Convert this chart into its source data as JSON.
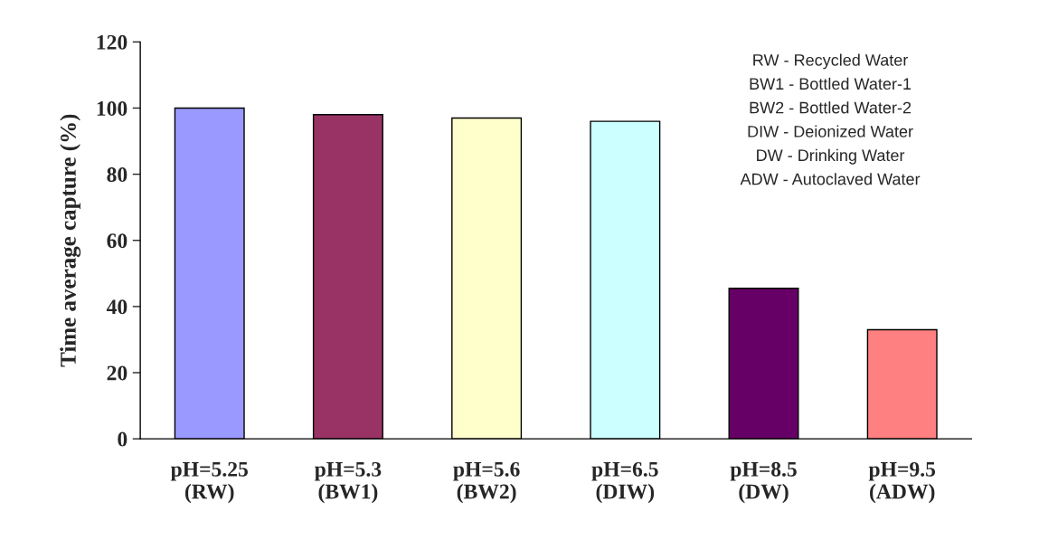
{
  "chart_data": {
    "type": "bar",
    "ylabel": "Time average capture (%)",
    "categories": [
      "pH=5.25\n(RW)",
      "pH=5.3\n(BW1)",
      "pH=5.6\n(BW2)",
      "pH=6.5\n(DIW)",
      "pH=8.5\n(DW)",
      "pH=9.5\n(ADW)"
    ],
    "values": [
      100,
      98,
      97,
      96,
      45.5,
      33
    ],
    "colors": [
      "#9999ff",
      "#993366",
      "#ffffcc",
      "#ccffff",
      "#660066",
      "#ff8080"
    ],
    "ylim": [
      0,
      120
    ],
    "yticks": [
      0,
      20,
      40,
      60,
      80,
      100,
      120
    ],
    "grid": false,
    "annotations": [
      "RW - Recycled Water",
      "BW1 - Bottled Water-1",
      "BW2 - Bottled Water-2",
      "DIW - Deionized Water",
      "DW - Drinking Water",
      "ADW - Autoclaved Water"
    ]
  }
}
